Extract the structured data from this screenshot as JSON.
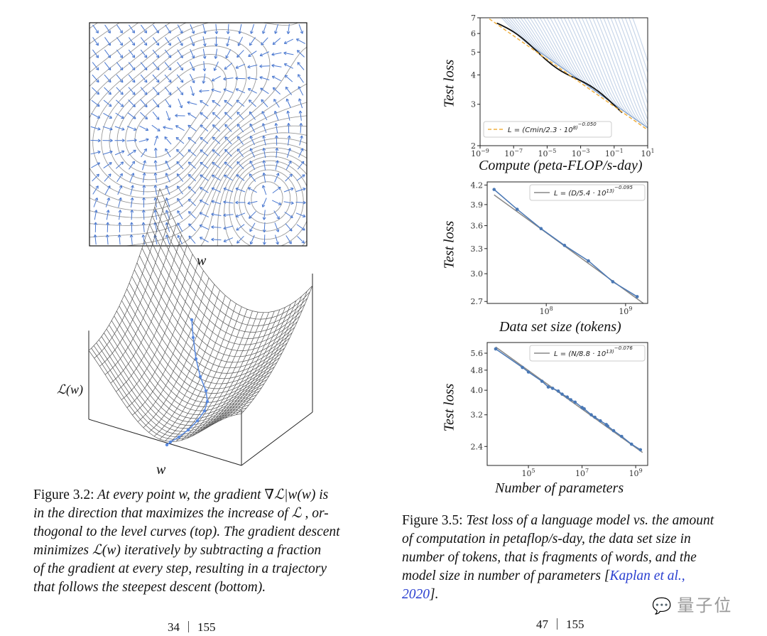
{
  "left_page": {
    "vector_field_xlabel": "w",
    "surface_xlabel": "w",
    "surface_ylabel": "ℒ(w)",
    "caption_label": "Figure 3.2:",
    "caption_lines": [
      "At every point w, the gradient ∇ℒ|w(w) is",
      "in the direction that maximizes the increase of ℒ , or-",
      "thogonal to the level curves (top). The gradient descent",
      "minimizes ℒ(w) iteratively by subtracting a fraction",
      "of the gradient at every step, resulting in a trajectory",
      "that follows the steepest descent (bottom)."
    ],
    "page_number": "34",
    "page_total": "155"
  },
  "right_page": {
    "caption_label": "Figure 3.5:",
    "caption_lines": [
      "Test loss of a language model vs. the amount",
      "of computation in petaflop/s-day, the data set size in",
      "number of tokens, that is fragments of words, and the",
      "model size in number of parameters ["
    ],
    "citation_part1": "Kaplan et al.,",
    "citation_part2": "2020",
    "caption_end": "].",
    "page_number": "47",
    "page_total": "155"
  },
  "watermark": "量子位",
  "colors": {
    "series_blue": "#4a78b5",
    "frontier": "#111111",
    "fit_orange": "#f0b040",
    "fit_gray": "#888888",
    "link": "#2a3fd0"
  },
  "chart_data": [
    {
      "type": "line",
      "title": "",
      "xlabel": "Compute (peta-FLOP/s-day)",
      "ylabel": "Test loss",
      "xscale": "log",
      "yscale": "log",
      "xlim": [
        1e-09,
        10
      ],
      "ylim": [
        2,
        7
      ],
      "xticks": [
        "10^-9",
        "10^-7",
        "10^-5",
        "10^-3",
        "10^-1",
        "10^1"
      ],
      "xtick_values": [
        1e-09,
        1e-07,
        1e-05,
        0.001,
        0.1,
        10
      ],
      "yticks": [
        "2",
        "3",
        "4",
        "5",
        "6",
        "7"
      ],
      "ytick_values": [
        2,
        3,
        4,
        5,
        6,
        7
      ],
      "legend": "L = (Cmin/2.3 · 10^8)^-0.050",
      "legend_position": "bottom-left",
      "fit": {
        "scale": 230000000.0,
        "exponent": -0.05
      },
      "frontier_range": [
        1e-08,
        0.3
      ],
      "n_runs": 40
    },
    {
      "type": "line",
      "xlabel": "Data set size (tokens)",
      "ylabel": "Test loss",
      "xscale": "log",
      "yscale": "log",
      "xlim": [
        18000000.0,
        1900000000.0
      ],
      "ylim": [
        2.68,
        4.25
      ],
      "xticks": [
        "10^8",
        "10^9"
      ],
      "xtick_values": [
        100000000.0,
        1000000000.0
      ],
      "yticks": [
        "2.7",
        "3.0",
        "3.3",
        "3.6",
        "3.9",
        "4.2"
      ],
      "ytick_values": [
        2.7,
        3.0,
        3.3,
        3.6,
        3.9,
        4.2
      ],
      "legend": "L = (D/5.4 · 10^13)^-0.095",
      "legend_position": "top-right",
      "fit": {
        "scale": 54000000000000.0,
        "exponent": -0.095
      },
      "x": [
        22000000.0,
        43000000.0,
        86000000.0,
        170000000.0,
        340000000.0,
        690000000.0,
        1400000000.0
      ],
      "y": [
        4.13,
        3.83,
        3.56,
        3.34,
        3.15,
        2.91,
        2.75
      ]
    },
    {
      "type": "line",
      "xlabel": "Number of parameters",
      "ylabel": "Test loss",
      "xscale": "log",
      "yscale": "log",
      "xlim": [
        2900.0,
        2800000000.0
      ],
      "ylim": [
        2.02,
        6.17
      ],
      "xticks": [
        "10^5",
        "10^7",
        "10^9"
      ],
      "xtick_values": [
        100000.0,
        10000000.0,
        1000000000.0
      ],
      "yticks": [
        "2.4",
        "3.2",
        "4.0",
        "4.8",
        "5.6"
      ],
      "ytick_values": [
        2.4,
        3.2,
        4.0,
        4.8,
        5.6
      ],
      "legend": "L = (N/8.8 · 10^13)^-0.076",
      "legend_position": "top-right",
      "fit": {
        "scale": 88000000000000.0,
        "exponent": -0.076
      },
      "x": [
        6000.0,
        60000.0,
        100000.0,
        320000.0,
        550000.0,
        800000.0,
        1300000.0,
        1800000.0,
        2800000.0,
        3800000.0,
        5500000.0,
        10000000.0,
        12000000.0,
        22000000.0,
        30000000.0,
        48000000.0,
        80000000.0,
        90000000.0,
        150000000.0,
        300000000.0,
        700000000.0,
        1500000000.0
      ],
      "y": [
        5.82,
        4.92,
        4.72,
        4.34,
        4.12,
        4.07,
        3.97,
        3.86,
        3.76,
        3.67,
        3.59,
        3.42,
        3.38,
        3.2,
        3.13,
        3.03,
        2.93,
        2.89,
        2.77,
        2.63,
        2.45,
        2.33
      ]
    }
  ]
}
